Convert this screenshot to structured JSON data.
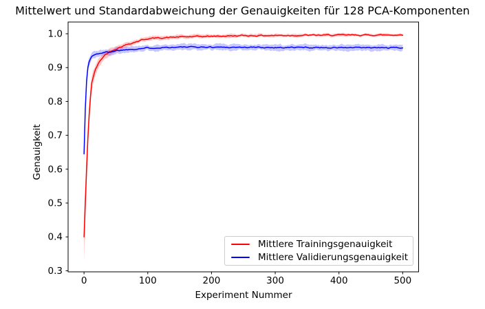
{
  "figure": {
    "background": "#ffffff",
    "spine_color": "#000000",
    "text_color": "#000000"
  },
  "legend": {
    "border_color": "#cccccc",
    "background": "rgba(255,255,255,0.8)"
  },
  "chart_data": {
    "type": "line",
    "title": "Mittelwert und Standardabweichung der Genauigkeiten für 128 PCA-Komponenten",
    "xlabel": "Experiment Nummer",
    "ylabel": "Genauigkeit",
    "grid": false,
    "legend_position": "lower right",
    "xlim": [
      -25,
      525
    ],
    "ylim": [
      0.2968,
      1.0346
    ],
    "x_ticks": [
      0,
      100,
      200,
      300,
      400,
      500
    ],
    "x_tick_labels": [
      "0",
      "100",
      "200",
      "300",
      "400",
      "500"
    ],
    "y_ticks": [
      0.3,
      0.4,
      0.5,
      0.6,
      0.7,
      0.8,
      0.9,
      1.0
    ],
    "y_tick_labels": [
      "0.3",
      "0.4",
      "0.5",
      "0.6",
      "0.7",
      "0.8",
      "0.9",
      "1.0"
    ],
    "x_range_points": [
      0,
      500
    ],
    "band_meaning": "mean ± standard deviation",
    "series": [
      {
        "key": "training",
        "name": "Mittlere Trainingsgenauigkeit",
        "color": "#ff0000",
        "band_opacity": 0.22,
        "seed": 42,
        "x": [
          0,
          3,
          5,
          7,
          9,
          12,
          15,
          18,
          22,
          27,
          33,
          40,
          45,
          50,
          60,
          70,
          80,
          90,
          100,
          120,
          150,
          200,
          250,
          300,
          350,
          400,
          450,
          500
        ],
        "y": [
          0.4,
          0.55,
          0.65,
          0.73,
          0.79,
          0.855,
          0.876,
          0.895,
          0.91,
          0.925,
          0.938,
          0.9465,
          0.951,
          0.9555,
          0.9635,
          0.97,
          0.9755,
          0.9815,
          0.9855,
          0.988,
          0.9905,
          0.9925,
          0.9945,
          0.995,
          0.9955,
          0.996,
          0.9962,
          0.9965
        ],
        "std": [
          0.073,
          0.05,
          0.04,
          0.032,
          0.027,
          0.022,
          0.018,
          0.015,
          0.013,
          0.011,
          0.01,
          0.009,
          0.0085,
          0.008,
          0.0075,
          0.007,
          0.0065,
          0.006,
          0.006,
          0.0058,
          0.0055,
          0.005,
          0.0048,
          0.0045,
          0.0045,
          0.0042,
          0.004,
          0.004
        ]
      },
      {
        "key": "validation",
        "name": "Mittlere Validierungsgenauigkeit",
        "color": "#0000ff",
        "band_opacity": 0.22,
        "seed": 1337,
        "x": [
          0,
          2,
          4,
          6,
          8,
          10,
          12,
          15,
          20,
          25,
          30,
          40,
          50,
          60,
          80,
          100,
          130,
          160,
          200,
          250,
          300,
          350,
          400,
          450,
          500
        ],
        "y": [
          0.645,
          0.78,
          0.86,
          0.9,
          0.917,
          0.926,
          0.933,
          0.9365,
          0.94,
          0.9425,
          0.944,
          0.9465,
          0.95,
          0.952,
          0.9555,
          0.958,
          0.96,
          0.9605,
          0.9605,
          0.96,
          0.9595,
          0.9595,
          0.959,
          0.9585,
          0.9585
        ],
        "std": [
          0.028,
          0.022,
          0.018,
          0.015,
          0.013,
          0.012,
          0.011,
          0.01,
          0.01,
          0.0095,
          0.009,
          0.009,
          0.0088,
          0.0087,
          0.0086,
          0.0085,
          0.0085,
          0.0085,
          0.0085,
          0.0085,
          0.0085,
          0.0085,
          0.0085,
          0.0085,
          0.0085
        ]
      }
    ]
  }
}
